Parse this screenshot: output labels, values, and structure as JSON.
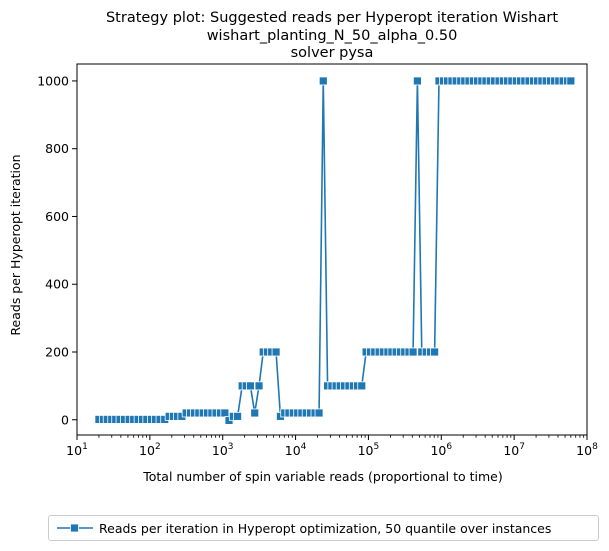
{
  "chart_data": {
    "type": "line",
    "title_lines": [
      "Strategy plot: Suggested reads per Hyperopt iteration Wishart",
      "wishart_planting_N_50_alpha_0.50",
      "solver pysa"
    ],
    "xlabel": "Total number of spin variable reads (proportional to time)",
    "ylabel": "Reads per Hyperopt iteration",
    "xscale": "log",
    "xlim": [
      10,
      100000000
    ],
    "ylim": [
      -45,
      1050
    ],
    "x_tick_exponents": [
      "1",
      "2",
      "3",
      "4",
      "5",
      "6",
      "7",
      "8"
    ],
    "x_tick_base": "10",
    "y_ticks": [
      "0",
      "200",
      "400",
      "600",
      "800",
      "1000"
    ],
    "grid": false,
    "legend_position": "bottom (outside plot)",
    "series_color": "#1f77b4",
    "marker": "square",
    "series": [
      {
        "name": "Reads per iteration in Hyperopt optimization, 50 quantile over instances",
        "x": [
          20,
          23,
          26,
          30,
          34,
          39,
          45,
          52,
          60,
          69,
          79,
          91,
          105,
          120,
          138,
          160,
          184,
          210,
          240,
          275,
          315,
          360,
          410,
          470,
          540,
          620,
          710,
          810,
          930,
          1070,
          1220,
          1400,
          1600,
          1850,
          2100,
          2400,
          2750,
          3150,
          3600,
          4100,
          4700,
          5400,
          6200,
          7100,
          8100,
          9300,
          10700,
          12200,
          14000,
          16000,
          18500,
          21000,
          24000,
          27500,
          31500,
          36000,
          41000,
          47000,
          54000,
          62000,
          71000,
          81000,
          93000,
          107000,
          122000,
          140000,
          160000,
          185000,
          210000,
          240000,
          275000,
          315000,
          360000,
          410000,
          470000,
          540000,
          620000,
          710000,
          810000,
          930000,
          1070000,
          1220000,
          1400000,
          1600000,
          1850000,
          2100000,
          2400000,
          2750000,
          3150000,
          3600000,
          4100000,
          4700000,
          5400000,
          6200000,
          7100000,
          8100000,
          9300000,
          10700000,
          12200000,
          14000000,
          16000000,
          18500000,
          21000000,
          24000000,
          27500000,
          31500000,
          36000000,
          41000000,
          47000000,
          54000000,
          60000000
        ],
        "y": [
          1,
          1,
          1,
          1,
          1,
          1,
          1,
          1,
          1,
          1,
          1,
          1,
          1,
          1,
          1,
          1,
          10,
          10,
          10,
          10,
          20,
          20,
          20,
          20,
          20,
          20,
          20,
          20,
          20,
          20,
          -2,
          10,
          10,
          100,
          100,
          100,
          20,
          100,
          200,
          200,
          200,
          200,
          10,
          20,
          20,
          20,
          20,
          20,
          20,
          20,
          20,
          20,
          1000,
          100,
          100,
          100,
          100,
          100,
          100,
          100,
          100,
          100,
          200,
          200,
          200,
          200,
          200,
          200,
          200,
          200,
          200,
          200,
          200,
          200,
          1000,
          200,
          200,
          200,
          200,
          1000,
          1000,
          1000,
          1000,
          1000,
          1000,
          1000,
          1000,
          1000,
          1000,
          1000,
          1000,
          1000,
          1000,
          1000,
          1000,
          1000,
          1000,
          1000,
          1000,
          1000,
          1000,
          1000,
          1000,
          1000,
          1000,
          1000,
          1000,
          1000,
          1000,
          1000,
          1000
        ]
      }
    ]
  }
}
